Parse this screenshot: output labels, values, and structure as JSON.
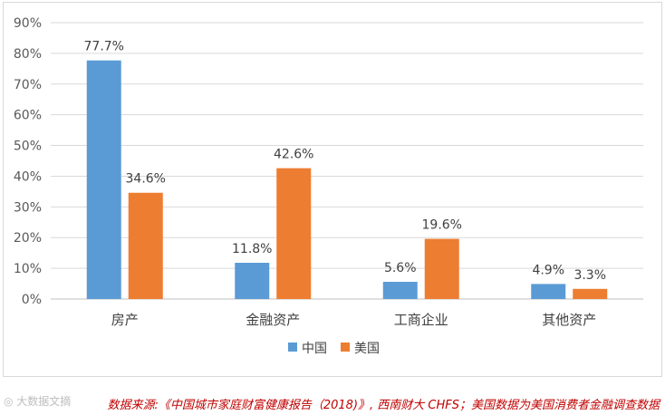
{
  "chart_data": {
    "type": "bar",
    "categories": [
      "房产",
      "金融资产",
      "工商企业",
      "其他资产"
    ],
    "series": [
      {
        "name": "中国",
        "values": [
          77.7,
          11.8,
          5.6,
          4.9
        ],
        "color": "#5b9bd5"
      },
      {
        "name": "美国",
        "values": [
          34.6,
          42.6,
          19.6,
          3.3
        ],
        "color": "#ed7d31"
      }
    ],
    "data_labels": [
      [
        "77.7%",
        "11.8%",
        "5.6%",
        "4.9%"
      ],
      [
        "34.6%",
        "42.6%",
        "19.6%",
        "3.3%"
      ]
    ],
    "y_ticks": [
      "0%",
      "10%",
      "20%",
      "30%",
      "40%",
      "50%",
      "60%",
      "70%",
      "80%",
      "90%"
    ],
    "ylim": [
      0,
      90
    ],
    "grid": true,
    "legend_position": "bottom"
  },
  "footer": {
    "source": "数据来源:《中国城市家庭财富健康报告（2018)》, 西南财大 CHFS；美国数据为美国消费者金融调查数据",
    "source_color": "#c00000",
    "watermark": "大数据文摘"
  }
}
